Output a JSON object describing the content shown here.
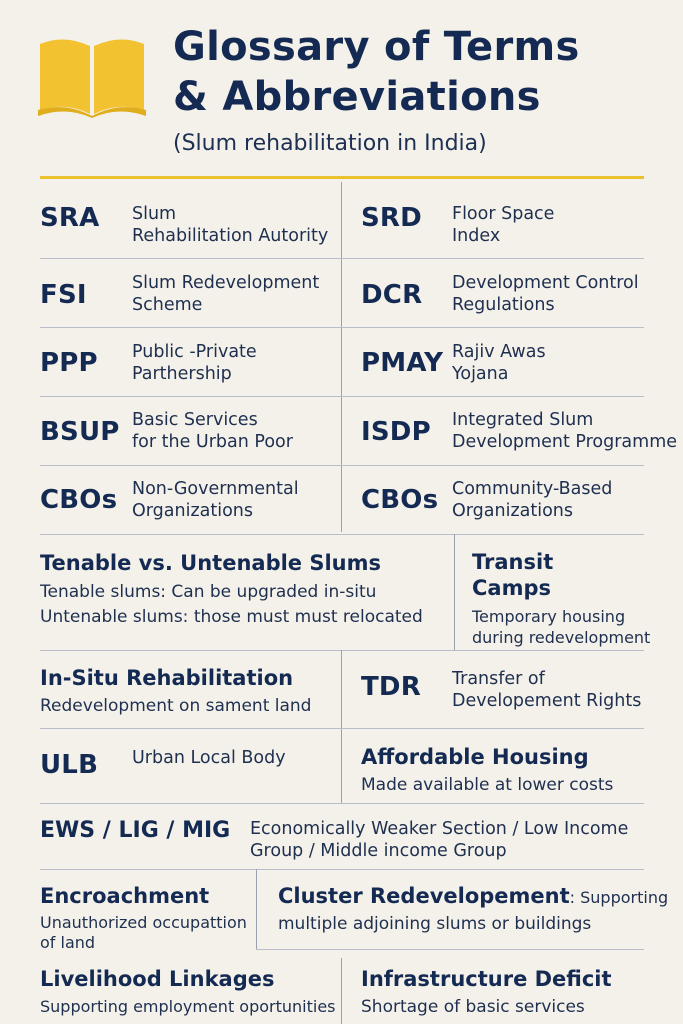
{
  "header": {
    "title_line1": "Glossary of Terms",
    "title_line2": "& Abbreviations",
    "subtitle": "(Slum rehabilitation in India)"
  },
  "pairs": [
    {
      "left": {
        "abbr": "SRA",
        "def1": "Slum",
        "def2": "Rehabilitation Autority"
      },
      "right": {
        "abbr": "SRD",
        "def1": "Floor Space",
        "def2": "Index"
      }
    },
    {
      "left": {
        "abbr": "FSI",
        "def1": "Slum Redevelopment",
        "def2": "Scheme"
      },
      "right": {
        "abbr": "DCR",
        "def1": "Development Control",
        "def2": "Regulations"
      }
    },
    {
      "left": {
        "abbr": "PPP",
        "def1": "Public -Private",
        "def2": "Parthership"
      },
      "right": {
        "abbr": "PMAY",
        "def1": "Rajiv Awas",
        "def2": "Yojana"
      }
    },
    {
      "left": {
        "abbr": "BSUP",
        "def1": "Basic Services",
        "def2": "for the Urban Poor"
      },
      "right": {
        "abbr": "ISDP",
        "def1": "Integrated Slum",
        "def2": "Development Programme"
      }
    },
    {
      "left": {
        "abbr": "CBOs",
        "def1": "Non-Governmental",
        "def2": "Organizations"
      },
      "right": {
        "abbr": "CBOs",
        "def1": "Community-Based",
        "def2": "Organizations"
      }
    }
  ],
  "tenable": {
    "heading": "Tenable vs. Untenable Slums",
    "line1": "Tenable slums: Can be upgraded in-situ",
    "line2": "Untenable slums: those must must relocated"
  },
  "transit": {
    "heading1": "Transit",
    "heading2": "Camps",
    "line1": "Temporary housing",
    "line2": "during redevelopment"
  },
  "insitu": {
    "heading": "In-Situ Rehabilitation",
    "line1": "Redevelopment on sament land"
  },
  "tdr": {
    "abbr": "TDR",
    "def1": "Transfer of",
    "def2": "Developement Rights"
  },
  "ulb": {
    "abbr": "ULB",
    "def1": "Urban Local Body"
  },
  "affordable": {
    "heading": "Affordable Housing",
    "line1": "Made available at lower costs"
  },
  "ews": {
    "abbr": "EWS / LIG / MIG",
    "def1": "Economically Weaker Section / Low Income",
    "def2": "Group / Middle income Group"
  },
  "encroachment": {
    "heading": "Encroachment",
    "line1": "Unauthorized occupattion",
    "line2": "of land"
  },
  "cluster": {
    "heading": "Cluster Redevelopement",
    "inline": ": Supporting",
    "line2": "multiple adjoining slums or buildings"
  },
  "livelihood": {
    "heading": "Livelihood Linkages",
    "line1": "Supporting employment oportunities"
  },
  "infrastructure": {
    "heading": "Infrastructure Deficit",
    "line1": "Shortage of basic services"
  },
  "colors": {
    "navy": "#142a52",
    "gold": "#f2c230",
    "background": "#f3f1ea"
  },
  "icons": {
    "header": "open-book-icon"
  }
}
